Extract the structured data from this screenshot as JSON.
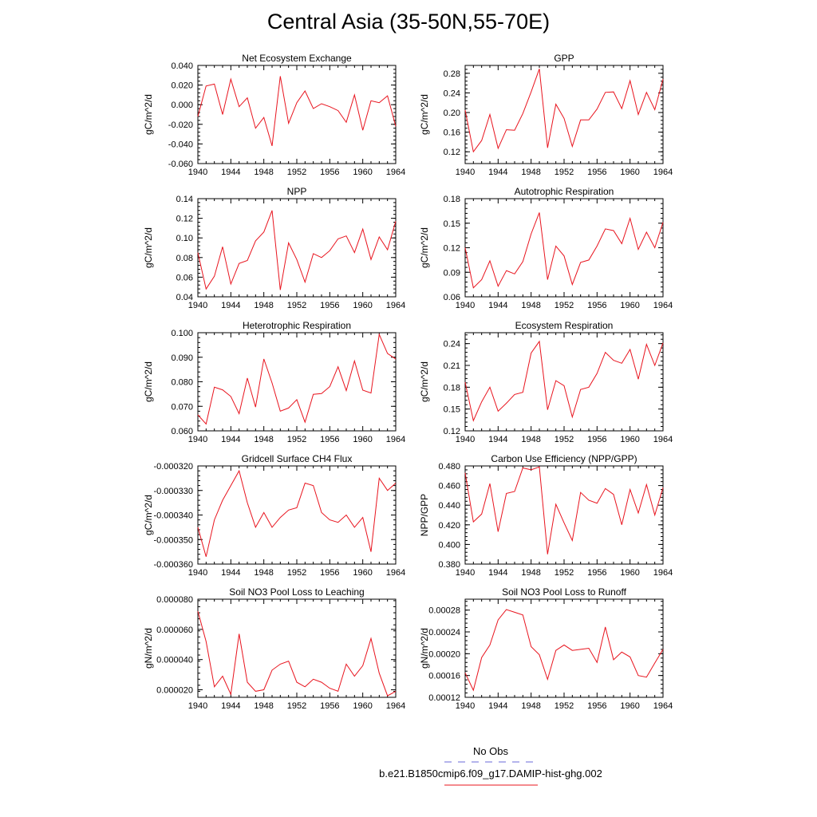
{
  "page_title": "Central Asia (35-50N,55-70E)",
  "colors": {
    "model_line": "#e8141e",
    "obs_line": "#6a6ad8",
    "axis": "#000000"
  },
  "legend": {
    "obs_label": "No Obs",
    "model_label": "b.e21.B1850cmip6.f09_g17.DAMIP-hist-ghg.002"
  },
  "chart_data": [
    {
      "type": "line",
      "title": "Net Ecosystem Exchange",
      "ylabel": "gC/m^2/d",
      "xlim": [
        1940,
        1964
      ],
      "ylim": [
        -0.06,
        0.04
      ],
      "x_ticks": [
        1940,
        1944,
        1948,
        1952,
        1956,
        1960,
        1964
      ],
      "y_ticks": [
        -0.06,
        -0.04,
        -0.02,
        0.0,
        0.02,
        0.04
      ],
      "y_tick_labels": [
        "-0.060",
        "-0.040",
        "-0.020",
        "0.000",
        "0.020",
        "0.040"
      ],
      "x": [
        1940,
        1941,
        1942,
        1943,
        1944,
        1945,
        1946,
        1947,
        1948,
        1949,
        1950,
        1951,
        1952,
        1953,
        1954,
        1955,
        1956,
        1957,
        1958,
        1959,
        1960,
        1961,
        1962,
        1963,
        1964
      ],
      "series": [
        {
          "values": [
            -0.012,
            0.019,
            0.021,
            -0.01,
            0.026,
            -0.002,
            0.007,
            -0.024,
            -0.013,
            -0.042,
            0.029,
            -0.019,
            0.002,
            0.014,
            -0.004,
            0.001,
            -0.002,
            -0.006,
            -0.018,
            0.01,
            -0.026,
            0.004,
            0.002,
            0.009,
            -0.022
          ]
        }
      ]
    },
    {
      "type": "line",
      "title": "GPP",
      "ylabel": "gC/m^2/d",
      "xlim": [
        1940,
        1964
      ],
      "ylim": [
        0.096,
        0.296
      ],
      "x_ticks": [
        1940,
        1944,
        1948,
        1952,
        1956,
        1960,
        1964
      ],
      "y_ticks": [
        0.12,
        0.16,
        0.2,
        0.24,
        0.28
      ],
      "y_tick_labels": [
        "0.12",
        "0.16",
        "0.20",
        "0.24",
        "0.28"
      ],
      "x": [
        1940,
        1941,
        1942,
        1943,
        1944,
        1945,
        1946,
        1947,
        1948,
        1949,
        1950,
        1951,
        1952,
        1953,
        1954,
        1955,
        1956,
        1957,
        1958,
        1959,
        1960,
        1961,
        1962,
        1963,
        1964
      ],
      "series": [
        {
          "values": [
            0.205,
            0.12,
            0.143,
            0.196,
            0.127,
            0.165,
            0.164,
            0.198,
            0.242,
            0.289,
            0.128,
            0.217,
            0.188,
            0.131,
            0.185,
            0.185,
            0.207,
            0.241,
            0.242,
            0.208,
            0.265,
            0.196,
            0.241,
            0.206,
            0.268
          ]
        }
      ]
    },
    {
      "type": "line",
      "title": "NPP",
      "ylabel": "gC/m^2/d",
      "xlim": [
        1940,
        1964
      ],
      "ylim": [
        0.04,
        0.14
      ],
      "x_ticks": [
        1940,
        1944,
        1948,
        1952,
        1956,
        1960,
        1964
      ],
      "y_ticks": [
        0.04,
        0.06,
        0.08,
        0.1,
        0.12,
        0.14
      ],
      "y_tick_labels": [
        "0.04",
        "0.06",
        "0.08",
        "0.10",
        "0.12",
        "0.14"
      ],
      "x": [
        1940,
        1941,
        1942,
        1943,
        1944,
        1945,
        1946,
        1947,
        1948,
        1949,
        1950,
        1951,
        1952,
        1953,
        1954,
        1955,
        1956,
        1957,
        1958,
        1959,
        1960,
        1961,
        1962,
        1963,
        1964
      ],
      "series": [
        {
          "values": [
            0.085,
            0.048,
            0.061,
            0.091,
            0.053,
            0.074,
            0.077,
            0.097,
            0.106,
            0.128,
            0.047,
            0.095,
            0.078,
            0.055,
            0.084,
            0.08,
            0.087,
            0.099,
            0.102,
            0.085,
            0.109,
            0.078,
            0.101,
            0.088,
            0.117
          ]
        }
      ]
    },
    {
      "type": "line",
      "title": "Autotrophic Respiration",
      "ylabel": "gC/m^2/d",
      "xlim": [
        1940,
        1964
      ],
      "ylim": [
        0.06,
        0.18
      ],
      "x_ticks": [
        1940,
        1944,
        1948,
        1952,
        1956,
        1960,
        1964
      ],
      "y_ticks": [
        0.06,
        0.09,
        0.12,
        0.15,
        0.18
      ],
      "y_tick_labels": [
        "0.06",
        "0.09",
        "0.12",
        "0.15",
        "0.18"
      ],
      "x": [
        1940,
        1941,
        1942,
        1943,
        1944,
        1945,
        1946,
        1947,
        1948,
        1949,
        1950,
        1951,
        1952,
        1953,
        1954,
        1955,
        1956,
        1957,
        1958,
        1959,
        1960,
        1961,
        1962,
        1963,
        1964
      ],
      "series": [
        {
          "values": [
            0.12,
            0.071,
            0.081,
            0.104,
            0.073,
            0.092,
            0.088,
            0.103,
            0.137,
            0.163,
            0.081,
            0.122,
            0.11,
            0.075,
            0.102,
            0.105,
            0.122,
            0.143,
            0.141,
            0.125,
            0.156,
            0.118,
            0.139,
            0.12,
            0.151
          ]
        }
      ]
    },
    {
      "type": "line",
      "title": "Heterotrophic Respiration",
      "ylabel": "gC/m^2/d",
      "xlim": [
        1940,
        1964
      ],
      "ylim": [
        0.06,
        0.1
      ],
      "x_ticks": [
        1940,
        1944,
        1948,
        1952,
        1956,
        1960,
        1964
      ],
      "y_ticks": [
        0.06,
        0.07,
        0.08,
        0.09,
        0.1
      ],
      "y_tick_labels": [
        "0.060",
        "0.070",
        "0.080",
        "0.090",
        "0.100"
      ],
      "x": [
        1940,
        1941,
        1942,
        1943,
        1944,
        1945,
        1946,
        1947,
        1948,
        1949,
        1950,
        1951,
        1952,
        1953,
        1954,
        1955,
        1956,
        1957,
        1958,
        1959,
        1960,
        1961,
        1962,
        1963,
        1964
      ],
      "series": [
        {
          "values": [
            0.0665,
            0.0628,
            0.0778,
            0.0767,
            0.074,
            0.067,
            0.0815,
            0.0697,
            0.0893,
            0.0795,
            0.068,
            0.0693,
            0.0727,
            0.0635,
            0.0749,
            0.0752,
            0.078,
            0.0861,
            0.0764,
            0.0885,
            0.0766,
            0.0754,
            0.0993,
            0.0915,
            0.0893
          ]
        }
      ]
    },
    {
      "type": "line",
      "title": "Ecosystem Respiration",
      "ylabel": "gC/m^2/d",
      "xlim": [
        1940,
        1964
      ],
      "ylim": [
        0.12,
        0.255
      ],
      "x_ticks": [
        1940,
        1944,
        1948,
        1952,
        1956,
        1960,
        1964
      ],
      "y_ticks": [
        0.12,
        0.15,
        0.18,
        0.21,
        0.24
      ],
      "y_tick_labels": [
        "0.12",
        "0.15",
        "0.18",
        "0.21",
        "0.24"
      ],
      "x": [
        1940,
        1941,
        1942,
        1943,
        1944,
        1945,
        1946,
        1947,
        1948,
        1949,
        1950,
        1951,
        1952,
        1953,
        1954,
        1955,
        1956,
        1957,
        1958,
        1959,
        1960,
        1961,
        1962,
        1963,
        1964
      ],
      "series": [
        {
          "values": [
            0.187,
            0.134,
            0.16,
            0.18,
            0.147,
            0.158,
            0.17,
            0.173,
            0.227,
            0.243,
            0.149,
            0.189,
            0.182,
            0.139,
            0.177,
            0.18,
            0.199,
            0.228,
            0.217,
            0.213,
            0.232,
            0.191,
            0.239,
            0.21,
            0.241
          ]
        }
      ]
    },
    {
      "type": "line",
      "title": "Gridcell Surface CH4 Flux",
      "ylabel": "gC/m^2/d",
      "xlim": [
        1940,
        1964
      ],
      "ylim": [
        -0.00036,
        -0.00032
      ],
      "x_ticks": [
        1940,
        1944,
        1948,
        1952,
        1956,
        1960,
        1964
      ],
      "y_ticks": [
        -0.00036,
        -0.00035,
        -0.00034,
        -0.00033,
        -0.00032
      ],
      "y_tick_labels": [
        "-0.000360",
        "-0.000350",
        "-0.000340",
        "-0.000330",
        "-0.000320"
      ],
      "x": [
        1940,
        1941,
        1942,
        1943,
        1944,
        1945,
        1946,
        1947,
        1948,
        1949,
        1950,
        1951,
        1952,
        1953,
        1954,
        1955,
        1956,
        1957,
        1958,
        1959,
        1960,
        1961,
        1962,
        1963,
        1964
      ],
      "series": [
        {
          "values": [
            -0.000345,
            -0.000357,
            -0.000342,
            -0.000334,
            -0.000328,
            -0.000322,
            -0.000335,
            -0.000345,
            -0.000339,
            -0.000345,
            -0.000341,
            -0.000338,
            -0.000337,
            -0.000327,
            -0.000328,
            -0.000339,
            -0.000342,
            -0.000343,
            -0.00034,
            -0.000345,
            -0.000341,
            -0.000355,
            -0.000325,
            -0.00033,
            -0.000327
          ]
        }
      ]
    },
    {
      "type": "line",
      "title": "Carbon Use Efficiency (NPP/GPP)",
      "ylabel": "NPP/GPP",
      "xlim": [
        1940,
        1964
      ],
      "ylim": [
        0.38,
        0.48
      ],
      "x_ticks": [
        1940,
        1944,
        1948,
        1952,
        1956,
        1960,
        1964
      ],
      "y_ticks": [
        0.38,
        0.4,
        0.42,
        0.44,
        0.46,
        0.48
      ],
      "y_tick_labels": [
        "0.380",
        "0.400",
        "0.420",
        "0.440",
        "0.460",
        "0.480"
      ],
      "x": [
        1940,
        1941,
        1942,
        1943,
        1944,
        1945,
        1946,
        1947,
        1948,
        1949,
        1950,
        1951,
        1952,
        1953,
        1954,
        1955,
        1956,
        1957,
        1958,
        1959,
        1960,
        1961,
        1962,
        1963,
        1964
      ],
      "series": [
        {
          "values": [
            0.473,
            0.423,
            0.431,
            0.462,
            0.413,
            0.452,
            0.454,
            0.478,
            0.476,
            0.479,
            0.39,
            0.441,
            0.422,
            0.404,
            0.453,
            0.445,
            0.442,
            0.457,
            0.451,
            0.42,
            0.456,
            0.432,
            0.461,
            0.43,
            0.458
          ]
        }
      ]
    },
    {
      "type": "line",
      "title": "Soil NO3 Pool Loss to Leaching",
      "ylabel": "gN/m^2/d",
      "xlim": [
        1940,
        1964
      ],
      "ylim": [
        1.5e-05,
        8e-05
      ],
      "x_ticks": [
        1940,
        1944,
        1948,
        1952,
        1956,
        1960,
        1964
      ],
      "y_ticks": [
        2e-05,
        4e-05,
        6e-05,
        8e-05
      ],
      "y_tick_labels": [
        "0.000020",
        "0.000040",
        "0.000060",
        "0.000080"
      ],
      "x": [
        1940,
        1941,
        1942,
        1943,
        1944,
        1945,
        1946,
        1947,
        1948,
        1949,
        1950,
        1951,
        1952,
        1953,
        1954,
        1955,
        1956,
        1957,
        1958,
        1959,
        1960,
        1961,
        1962,
        1963,
        1964
      ],
      "series": [
        {
          "values": [
            7.2e-05,
            5.2e-05,
            2.2e-05,
            2.9e-05,
            1.7e-05,
            5.7e-05,
            2.5e-05,
            1.9e-05,
            2e-05,
            3.3e-05,
            3.7e-05,
            3.9e-05,
            2.5e-05,
            2.2e-05,
            2.7e-05,
            2.5e-05,
            2.1e-05,
            1.9e-05,
            3.7e-05,
            2.9e-05,
            3.6e-05,
            5.4e-05,
            3.1e-05,
            1.6e-05,
            1.9e-05
          ]
        }
      ]
    },
    {
      "type": "line",
      "title": "Soil NO3 Pool Loss to Runoff",
      "ylabel": "gN/m^2/d",
      "xlim": [
        1940,
        1964
      ],
      "ylim": [
        0.00012,
        0.0003
      ],
      "x_ticks": [
        1940,
        1944,
        1948,
        1952,
        1956,
        1960,
        1964
      ],
      "y_ticks": [
        0.00012,
        0.00016,
        0.0002,
        0.00024,
        0.00028
      ],
      "y_tick_labels": [
        "0.00012",
        "0.00016",
        "0.00020",
        "0.00024",
        "0.00028"
      ],
      "x": [
        1940,
        1941,
        1942,
        1943,
        1944,
        1945,
        1946,
        1947,
        1948,
        1949,
        1950,
        1951,
        1952,
        1953,
        1954,
        1955,
        1956,
        1957,
        1958,
        1959,
        1960,
        1961,
        1962,
        1963,
        1964
      ],
      "series": [
        {
          "values": [
            0.000165,
            0.000133,
            0.000193,
            0.000216,
            0.000262,
            0.000281,
            0.000276,
            0.000271,
            0.000213,
            0.000198,
            0.000153,
            0.000206,
            0.000216,
            0.000206,
            0.000208,
            0.00021,
            0.000184,
            0.000249,
            0.000189,
            0.000203,
            0.000194,
            0.00016,
            0.000157,
            0.000183,
            0.000208
          ]
        }
      ]
    }
  ]
}
